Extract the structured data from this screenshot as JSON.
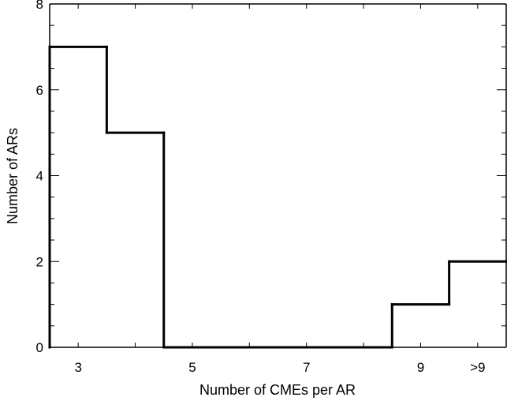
{
  "chart_data": {
    "type": "histogram",
    "title": "",
    "xlabel": "Number of CMEs per AR",
    "ylabel": "Number of ARs",
    "ylim": [
      0,
      8
    ],
    "xlim": [
      2.5,
      10.5
    ],
    "bins": [
      {
        "x": 3,
        "label": "3",
        "value": 7
      },
      {
        "x": 4,
        "label": "",
        "value": 5
      },
      {
        "x": 5,
        "label": "5",
        "value": 0
      },
      {
        "x": 6,
        "label": "",
        "value": 0
      },
      {
        "x": 7,
        "label": "7",
        "value": 0
      },
      {
        "x": 8,
        "label": "",
        "value": 0
      },
      {
        "x": 9,
        "label": "9",
        "value": 1
      },
      {
        "x": 10,
        "label": ">9",
        "value": 2
      }
    ],
    "x_tick_labels": [
      {
        "x": 3,
        "label": "3"
      },
      {
        "x": 5,
        "label": "5"
      },
      {
        "x": 7,
        "label": "7"
      },
      {
        "x": 9,
        "label": "9"
      },
      {
        "x": 10,
        "label": ">9"
      }
    ],
    "y_major_ticks": [
      0,
      2,
      4,
      6,
      8
    ],
    "y_minor_step": 0.5,
    "x_minor_ticks": [
      3,
      4,
      5,
      6,
      7,
      8,
      9,
      10
    ],
    "grid": false,
    "legend": "none",
    "line_color": "#000000"
  }
}
